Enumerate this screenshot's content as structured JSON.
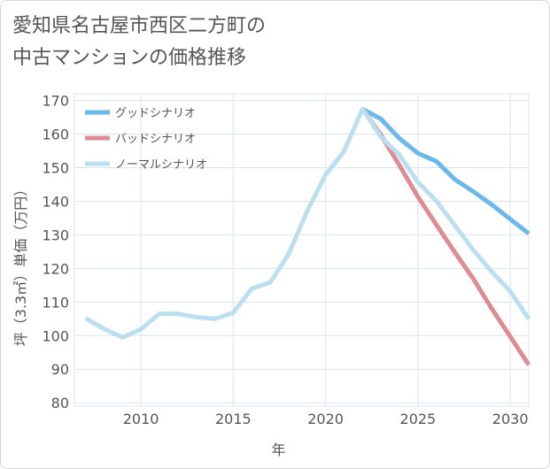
{
  "title_line1": "愛知県名古屋市西区二方町の",
  "title_line2": "中古マンションの価格推移",
  "chart_data": {
    "type": "line",
    "xlabel": "年",
    "ylabel": "坪（3.3㎡）単価（万円）",
    "xlim": [
      2006.4,
      2031
    ],
    "ylim": [
      79,
      172
    ],
    "xticks": [
      2010,
      2015,
      2020,
      2025,
      2030
    ],
    "yticks": [
      80,
      90,
      100,
      110,
      120,
      130,
      140,
      150,
      160,
      170
    ],
    "legend_position": "top-left",
    "series": [
      {
        "name": "グッドシナリオ",
        "color": "#6cb8ea",
        "x": [
          2022,
          2023,
          2024,
          2025,
          2026,
          2027,
          2028,
          2029,
          2030,
          2031
        ],
        "values": [
          167.5,
          164.5,
          158.7,
          154.3,
          151.9,
          146.5,
          142.9,
          139.0,
          134.7,
          130.4
        ]
      },
      {
        "name": "バッドシナリオ",
        "color": "#de8c93",
        "x": [
          2022,
          2023,
          2024,
          2025,
          2026,
          2027,
          2028,
          2029,
          2030,
          2031
        ],
        "values": [
          167.5,
          159.7,
          150.7,
          141.3,
          133.0,
          124.8,
          116.9,
          108.0,
          99.7,
          91.3
        ]
      },
      {
        "name": "ノーマルシナリオ",
        "color": "#bcdff0",
        "x": [
          2007,
          2008,
          2009,
          2010,
          2011,
          2012,
          2013,
          2014,
          2015,
          2016,
          2017,
          2018,
          2019,
          2020,
          2021,
          2022,
          2023,
          2024,
          2025,
          2026,
          2027,
          2028,
          2029,
          2030,
          2031
        ],
        "values": [
          105.2,
          102.0,
          99.5,
          101.9,
          106.5,
          106.5,
          105.5,
          105.0,
          106.8,
          114.0,
          115.8,
          124.3,
          137.0,
          147.9,
          154.9,
          167.5,
          159.1,
          153.8,
          145.7,
          140.1,
          132.8,
          125.5,
          119.0,
          113.2,
          105.0
        ]
      }
    ]
  }
}
